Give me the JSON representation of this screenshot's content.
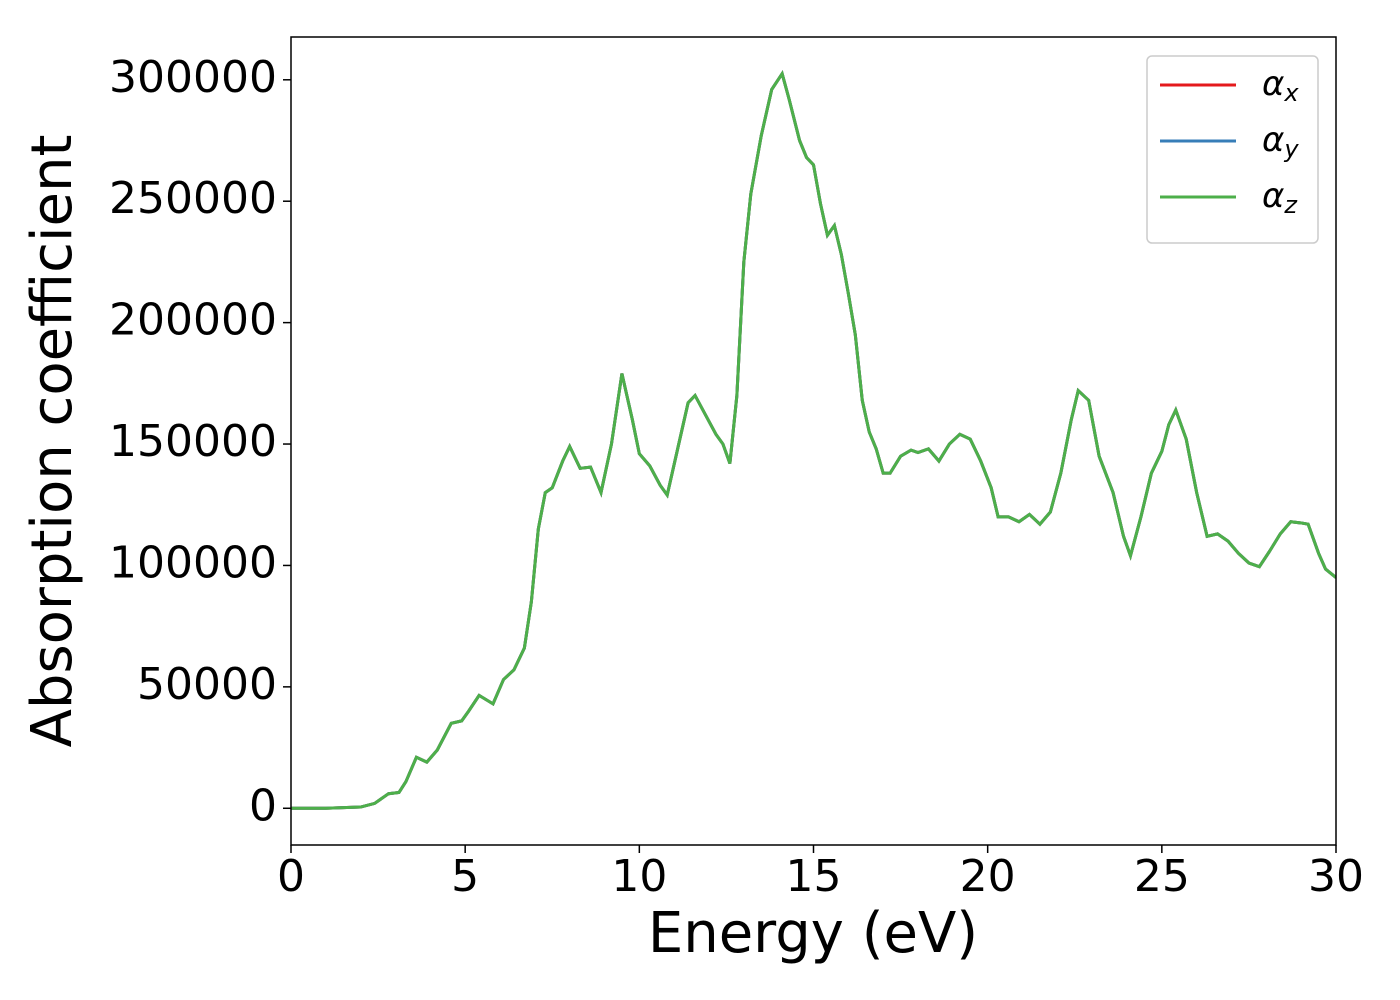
{
  "chart_data": {
    "type": "line",
    "xlabel": "Energy (eV)",
    "ylabel": "Absorption coefficient",
    "x": [
      0,
      1,
      2,
      2.4,
      2.8,
      3.1,
      3.3,
      3.6,
      3.9,
      4.2,
      4.6,
      4.9,
      5.1,
      5.4,
      5.8,
      6.1,
      6.4,
      6.7,
      6.9,
      7.1,
      7.3,
      7.5,
      7.8,
      8.0,
      8.3,
      8.6,
      8.9,
      9.2,
      9.5,
      9.8,
      10.0,
      10.3,
      10.6,
      10.8,
      11.1,
      11.4,
      11.6,
      11.9,
      12.2,
      12.4,
      12.6,
      12.8,
      13.0,
      13.2,
      13.5,
      13.8,
      14.1,
      14.3,
      14.6,
      14.8,
      15.0,
      15.2,
      15.4,
      15.6,
      15.8,
      16.0,
      16.2,
      16.4,
      16.6,
      16.8,
      17.0,
      17.2,
      17.5,
      17.8,
      18.0,
      18.3,
      18.6,
      18.9,
      19.2,
      19.5,
      19.8,
      20.1,
      20.3,
      20.6,
      20.9,
      21.2,
      21.5,
      21.8,
      22.1,
      22.4,
      22.6,
      22.9,
      23.2,
      23.6,
      23.9,
      24.1,
      24.4,
      24.7,
      25.0,
      25.2,
      25.4,
      25.7,
      26.0,
      26.3,
      26.6,
      26.9,
      27.2,
      27.5,
      27.8,
      28.1,
      28.4,
      28.7,
      29.0,
      29.2,
      29.5,
      29.7,
      30.0
    ],
    "series": [
      {
        "name": "αx",
        "color": "#e41a1c",
        "values": [
          0,
          0,
          500,
          2000,
          6000,
          6500,
          11000,
          21000,
          19000,
          24000,
          35000,
          36000,
          40000,
          46500,
          43000,
          53000,
          57000,
          66000,
          85000,
          115000,
          130000,
          132000,
          143000,
          149000,
          140000,
          140500,
          130000,
          150000,
          179000,
          160000,
          146000,
          141000,
          133000,
          129000,
          148000,
          167000,
          170000,
          162000,
          154000,
          150000,
          142000,
          170000,
          225000,
          253000,
          277000,
          296000,
          302500,
          292000,
          275000,
          268000,
          265000,
          249000,
          236000,
          240000,
          228000,
          212000,
          195000,
          168000,
          155000,
          148000,
          138000,
          138000,
          145000,
          147500,
          146500,
          148000,
          143000,
          150000,
          154000,
          152000,
          143000,
          132000,
          120000,
          120000,
          118000,
          121000,
          117000,
          122000,
          138000,
          160000,
          172000,
          168000,
          145000,
          130000,
          112000,
          104000,
          120000,
          138000,
          147000,
          158000,
          164000,
          152000,
          130000,
          112000,
          113000,
          110000,
          105000,
          101000,
          99500,
          106000,
          113000,
          118000,
          117500,
          117000,
          105000,
          98500,
          95000
        ]
      },
      {
        "name": "αy",
        "color": "#377eb8",
        "values": [
          0,
          0,
          500,
          2000,
          6000,
          6500,
          11000,
          21000,
          19000,
          24000,
          35000,
          36000,
          40000,
          46500,
          43000,
          53000,
          57000,
          66000,
          85000,
          115000,
          130000,
          132000,
          143000,
          149000,
          140000,
          140500,
          130000,
          150000,
          179000,
          160000,
          146000,
          141000,
          133000,
          129000,
          148000,
          167000,
          170000,
          162000,
          154000,
          150000,
          142000,
          170000,
          225000,
          253000,
          277000,
          296000,
          302500,
          292000,
          275000,
          268000,
          265000,
          249000,
          236000,
          240000,
          228000,
          212000,
          195000,
          168000,
          155000,
          148000,
          138000,
          138000,
          145000,
          147500,
          146500,
          148000,
          143000,
          150000,
          154000,
          152000,
          143000,
          132000,
          120000,
          120000,
          118000,
          121000,
          117000,
          122000,
          138000,
          160000,
          172000,
          168000,
          145000,
          130000,
          112000,
          104000,
          120000,
          138000,
          147000,
          158000,
          164000,
          152000,
          130000,
          112000,
          113000,
          110000,
          105000,
          101000,
          99500,
          106000,
          113000,
          118000,
          117500,
          117000,
          105000,
          98500,
          95000
        ]
      },
      {
        "name": "αz",
        "color": "#4daf4a",
        "values": [
          0,
          0,
          500,
          2000,
          6000,
          6500,
          11000,
          21000,
          19000,
          24000,
          35000,
          36000,
          40000,
          46500,
          43000,
          53000,
          57000,
          66000,
          85000,
          115000,
          130000,
          132000,
          143000,
          149000,
          140000,
          140500,
          130000,
          150000,
          179000,
          160000,
          146000,
          141000,
          133000,
          129000,
          148000,
          167000,
          170000,
          162000,
          154000,
          150000,
          142000,
          170000,
          225000,
          253000,
          277000,
          296000,
          302500,
          292000,
          275000,
          268000,
          265000,
          249000,
          236000,
          240000,
          228000,
          212000,
          195000,
          168000,
          155000,
          148000,
          138000,
          138000,
          145000,
          147500,
          146500,
          148000,
          143000,
          150000,
          154000,
          152000,
          143000,
          132000,
          120000,
          120000,
          118000,
          121000,
          117000,
          122000,
          138000,
          160000,
          172000,
          168000,
          145000,
          130000,
          112000,
          104000,
          120000,
          138000,
          147000,
          158000,
          164000,
          152000,
          130000,
          112000,
          113000,
          110000,
          105000,
          101000,
          99500,
          106000,
          113000,
          118000,
          117500,
          117000,
          105000,
          98500,
          95000
        ]
      }
    ],
    "xlim": [
      0,
      30
    ],
    "xticks": [
      0,
      5,
      10,
      15,
      20,
      25,
      30
    ],
    "ylim": [
      -15125,
      317625
    ],
    "yticks": [
      0,
      50000,
      100000,
      150000,
      200000,
      250000,
      300000
    ],
    "grid": false,
    "legend": "upper right"
  }
}
